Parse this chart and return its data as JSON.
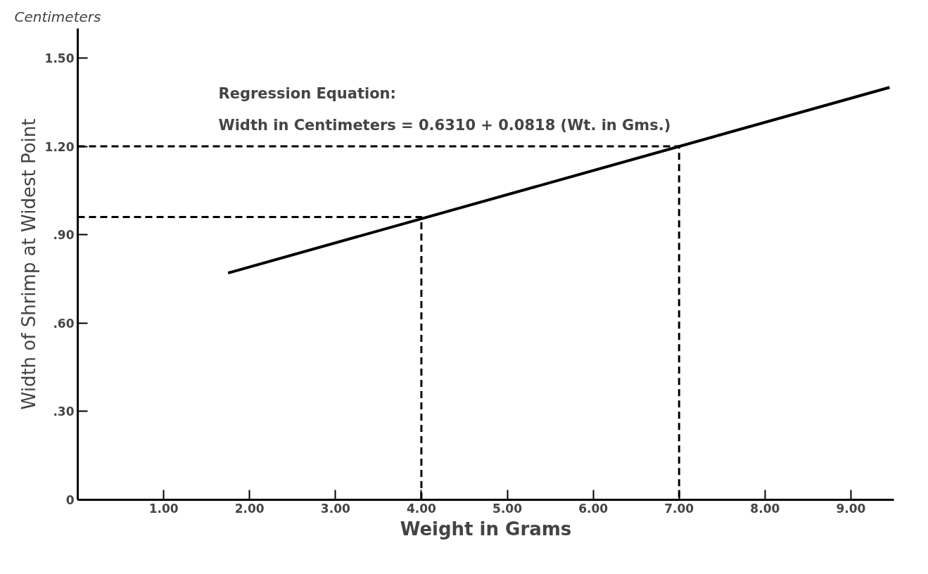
{
  "chart_data": {
    "type": "line",
    "xlabel": "Weight in Grams",
    "ylabel": "Width of Shrimp at Widest Point",
    "annotations": [
      "Centimeters",
      "Regression Equation:",
      "Width in Centimeters = 0.6310 + 0.0818 (Wt. in Gms.)"
    ],
    "xlim": [
      0,
      9.5
    ],
    "ylim": [
      0,
      1.6
    ],
    "xticks": [
      {
        "value": 1,
        "label": "1.00"
      },
      {
        "value": 2,
        "label": "2.00"
      },
      {
        "value": 3,
        "label": "3.00"
      },
      {
        "value": 4,
        "label": "4.00"
      },
      {
        "value": 5,
        "label": "5.00"
      },
      {
        "value": 6,
        "label": "6.00"
      },
      {
        "value": 7,
        "label": "7.00"
      },
      {
        "value": 8,
        "label": "8.00"
      },
      {
        "value": 9,
        "label": "9.00"
      }
    ],
    "yticks": [
      0,
      {
        "value": 0.3,
        "label": ".30"
      },
      {
        "value": 0.6,
        "label": ".60"
      },
      {
        "value": 0.9,
        "label": ".90"
      },
      {
        "value": 1.2,
        "label": "1.20"
      },
      {
        "value": 1.5,
        "label": "1.50"
      }
    ],
    "grid": false,
    "series": [
      {
        "color": "#000000",
        "x": [
          1.75,
          9.45
        ],
        "values": [
          0.77,
          1.4
        ],
        "line_style": "solid"
      },
      {
        "color": "#000000",
        "x": [
          0,
          4,
          4
        ],
        "values": [
          0.96,
          0.96,
          0
        ],
        "line_style": "dashed"
      },
      {
        "color": "#000000",
        "x": [
          0,
          7,
          7
        ],
        "values": [
          1.2,
          1.2,
          0
        ],
        "line_style": "dashed"
      }
    ]
  }
}
